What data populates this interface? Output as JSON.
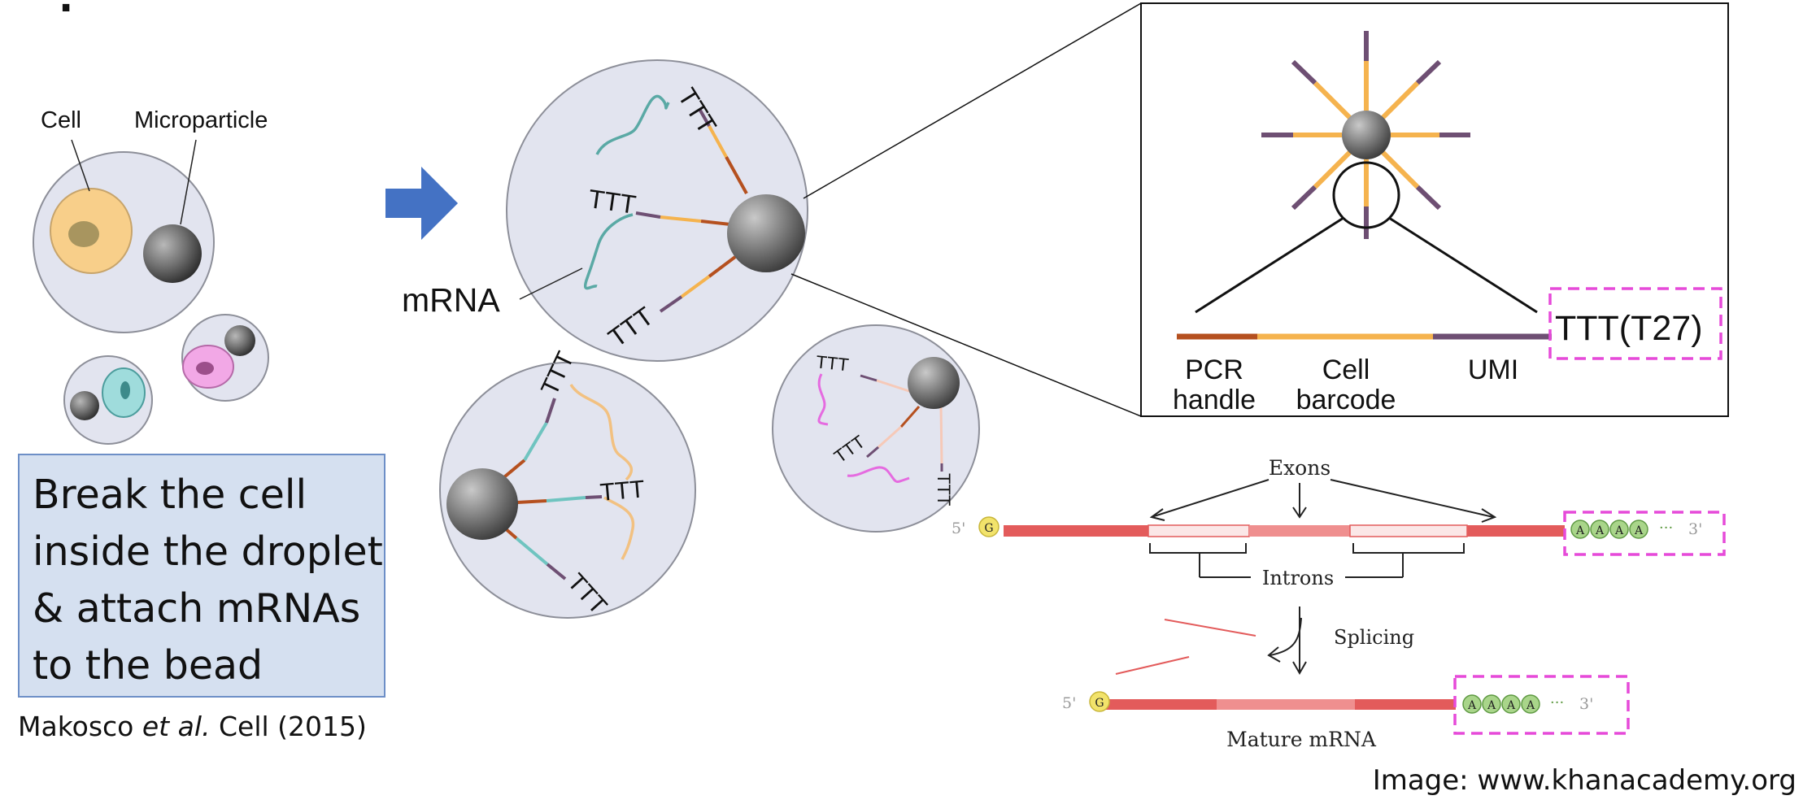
{
  "droplet_labels": {
    "cell": "Cell",
    "microparticle": "Microparticle",
    "mrna": "mRNA"
  },
  "oligo_motif": "TTT",
  "caption_lines": [
    "Break the cell",
    "inside the droplet",
    "& attach mRNAs",
    "to the bead"
  ],
  "citation": {
    "authors": "Makosco",
    "etal": "et al.",
    "journal": "Cell (2015)"
  },
  "bead_inset": {
    "segments": {
      "pcr_handle": [
        "PCR",
        "handle"
      ],
      "cell_barcode": [
        "Cell",
        "barcode"
      ],
      "umi": "UMI",
      "polyt": "TTT(T27)"
    }
  },
  "splicing": {
    "exons": "Exons",
    "introns": "Introns",
    "splicing": "Splicing",
    "mature_mrna": "Mature mRNA",
    "five_prime": "5'",
    "three_prime": "3'",
    "cap": "G",
    "poly_a": "A",
    "ellipsis": "···"
  },
  "image_credit": "Image: www.khanacademy.org",
  "colors": {
    "droplet_fill": "#e2e4ef",
    "droplet_stroke": "#8d8f99",
    "pcr_handle": "#b5501f",
    "cell_barcode": "#f5b34e",
    "umi": "#6e4f73",
    "highlight_box": "#e64ad9",
    "arrow": "#4472c4",
    "exon": "#e35b5b",
    "poly_a": "#a9d58a",
    "cap": "#f2e36b"
  }
}
